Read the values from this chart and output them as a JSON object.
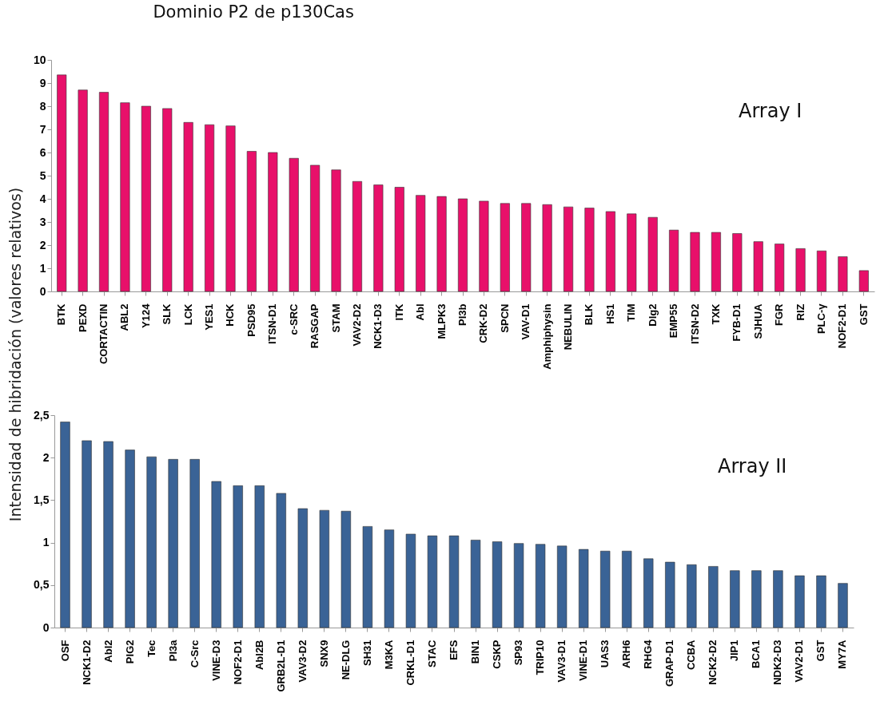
{
  "chart_data": [
    {
      "type": "bar",
      "title": "Dominio P2 de p130Cas",
      "ylabel": "Intensidad de hibridación (valores relativos)",
      "categories": [
        "BTK",
        "PEXD",
        "CORTACTIN",
        "ABL2",
        "Y124",
        "SLK",
        "LCK",
        "YES1",
        "HCK",
        "PSD95",
        "ITSN-D1",
        "c-SRC",
        "RASGAP",
        "STAM",
        "VAV2-D2",
        "NCK1-D3",
        "ITK",
        "Abl",
        "MLPK3",
        "PI3b",
        "CRK-D2",
        "SPCN",
        "VAV-D1",
        "Amphiphysin",
        "NEBULIN",
        "BLK",
        "HS1",
        "TIM",
        "Dlg2",
        "EMP55",
        "ITSN-D2",
        "TXK",
        "FYB-D1",
        "SJHUA",
        "FGR",
        "RIZ",
        "PLC-γ",
        "NOF2-D1",
        "GST"
      ],
      "values": [
        9.35,
        8.7,
        8.6,
        8.15,
        8.0,
        7.9,
        7.3,
        7.2,
        7.15,
        6.05,
        6.0,
        5.75,
        5.45,
        5.25,
        4.75,
        4.6,
        4.5,
        4.15,
        4.1,
        4.0,
        3.9,
        3.8,
        3.8,
        3.75,
        3.65,
        3.6,
        3.45,
        3.35,
        3.2,
        2.65,
        2.55,
        2.55,
        2.5,
        2.15,
        2.05,
        1.85,
        1.75,
        1.5,
        0.9
      ],
      "color": "#e8106a",
      "ylim": [
        0,
        10
      ],
      "yticks": [
        0,
        1,
        2,
        3,
        4,
        5,
        6,
        7,
        8,
        9,
        10
      ],
      "grid": false,
      "annotations": [
        "Array I"
      ]
    },
    {
      "type": "bar",
      "categories": [
        "OSF",
        "NCK1-D2",
        "Abl2",
        "PIG2",
        "Tec",
        "PI3a",
        "C-Src",
        "VINE-D3",
        "NOF2-D1",
        "Abl2B",
        "GRB2L-D1",
        "VAV3-D2",
        "SNX9",
        "NE-DLG",
        "SH31",
        "M3KA",
        "CRKL-D1",
        "STAC",
        "EFS",
        "BIN1",
        "CSKP",
        "SP93",
        "TRIP10",
        "VAV3-D1",
        "VINE-D1",
        "UAS3",
        "ARH6",
        "RHG4",
        "GRAP-D1",
        "CCBA",
        "NCK2-D2",
        "JIP1",
        "BCA1",
        "NDK2-D3",
        "VAV2-D1",
        "GST",
        "MY7A"
      ],
      "values": [
        2.42,
        2.2,
        2.19,
        2.09,
        2.01,
        1.98,
        1.98,
        1.72,
        1.67,
        1.67,
        1.58,
        1.4,
        1.38,
        1.37,
        1.19,
        1.15,
        1.1,
        1.08,
        1.08,
        1.03,
        1.01,
        0.99,
        0.98,
        0.96,
        0.92,
        0.9,
        0.9,
        0.81,
        0.77,
        0.74,
        0.72,
        0.67,
        0.67,
        0.67,
        0.61,
        0.61,
        0.52
      ],
      "color": "#3a6396",
      "ylim": [
        0,
        2.5
      ],
      "yticks": [
        0,
        {
          "value": 0.5,
          "label": "0,5"
        },
        1,
        {
          "value": 1.5,
          "label": "1,5"
        },
        2,
        {
          "value": 2.5,
          "label": "2,5"
        }
      ],
      "grid": false,
      "annotations": [
        "Array II"
      ]
    }
  ]
}
